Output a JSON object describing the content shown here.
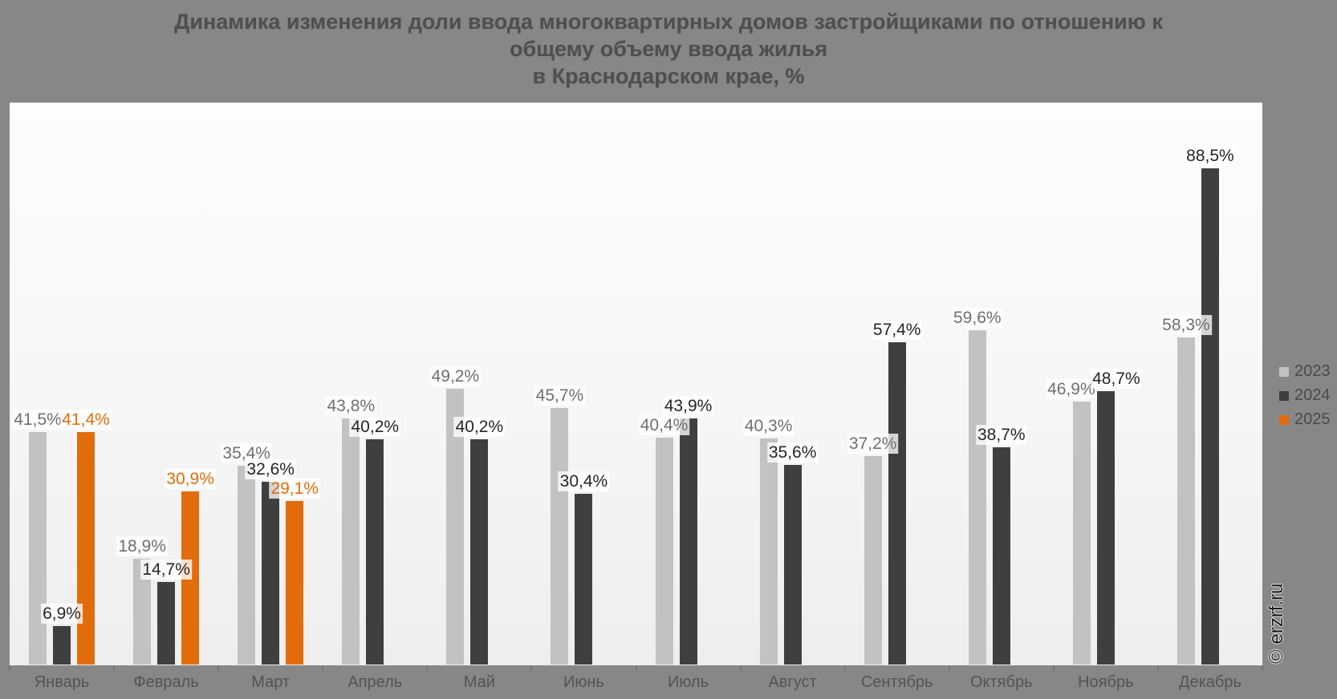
{
  "title": {
    "lines": [
      "Динамика изменения доли ввода многоквартирных домов застройщиками по отношению к",
      "общему объему ввода жилья",
      "в Краснодарском крае, %"
    ]
  },
  "watermark": "© erzrf.ru",
  "colors": {
    "page_background": "#878787",
    "plot_background_top": "#fdfdfd",
    "plot_background_bottom": "#eeeeee",
    "title_text": "#4f4f4f",
    "month_text": "#545454",
    "legend_text": "#4a4a4a",
    "tick": "#757575"
  },
  "chart_data": {
    "type": "bar",
    "title": "Динамика изменения доли ввода многоквартирных домов застройщиками по отношению к общему объему ввода жилья в Краснодарском крае, %",
    "categories": [
      "Январь",
      "Февраль",
      "Март",
      "Апрель",
      "Май",
      "Июнь",
      "Июль",
      "Август",
      "Сентябрь",
      "Октябрь",
      "Ноябрь",
      "Декабрь"
    ],
    "series": [
      {
        "name": "2023",
        "color": "#c2c2c2",
        "label_color": "#6f6f6f",
        "values": [
          41.5,
          18.9,
          35.4,
          43.8,
          49.2,
          45.7,
          40.4,
          40.3,
          37.2,
          59.6,
          46.9,
          58.3
        ]
      },
      {
        "name": "2024",
        "color": "#3f3f3f",
        "label_color": "#262626",
        "values": [
          6.9,
          14.7,
          32.6,
          40.2,
          40.2,
          30.4,
          43.9,
          35.6,
          57.4,
          38.7,
          48.7,
          88.5
        ]
      },
      {
        "name": "2025",
        "color": "#e26c0c",
        "label_color": "#e26c0c",
        "values": [
          41.4,
          30.9,
          29.1,
          null,
          null,
          null,
          null,
          null,
          null,
          null,
          null,
          null
        ]
      }
    ],
    "ylim": [
      0,
      100
    ],
    "grid": false,
    "legend_position": "right",
    "value_suffix": "%",
    "decimal_separator": ",",
    "data_labels": true
  }
}
